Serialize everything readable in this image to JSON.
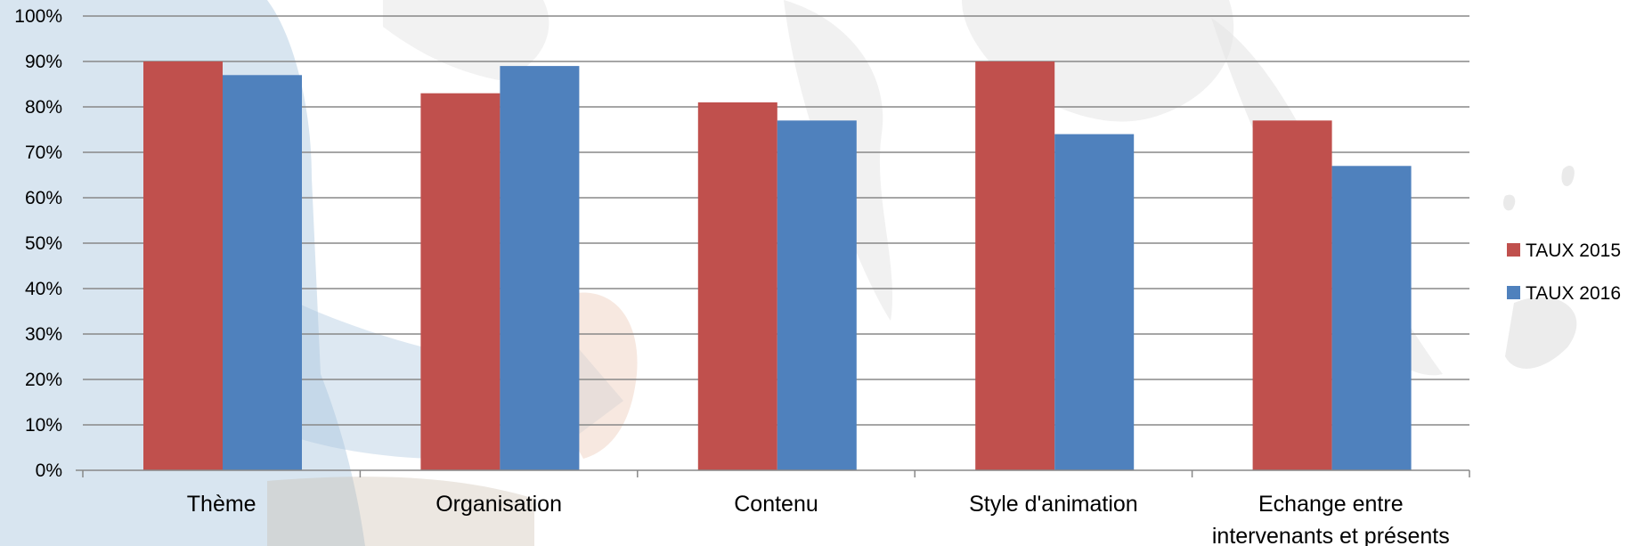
{
  "chart_data": {
    "type": "bar",
    "categories": [
      "Thème",
      "Organisation",
      "Contenu",
      "Style d'animation",
      "Echange entre intervenants et présents"
    ],
    "category_lines": [
      [
        "Thème"
      ],
      [
        "Organisation"
      ],
      [
        "Contenu"
      ],
      [
        "Style d'animation"
      ],
      [
        "Echange entre",
        "intervenants et présents"
      ]
    ],
    "series": [
      {
        "name": "TAUX 2015",
        "color": "#C0504D",
        "values": [
          0.9,
          0.83,
          0.81,
          0.9,
          0.77
        ]
      },
      {
        "name": "TAUX 2016",
        "color": "#4F81BD",
        "values": [
          0.87,
          0.89,
          0.77,
          0.74,
          0.67
        ]
      }
    ],
    "yticks": [
      "0%",
      "10%",
      "20%",
      "30%",
      "40%",
      "50%",
      "60%",
      "70%",
      "80%",
      "90%",
      "100%"
    ],
    "ylim": [
      0,
      1
    ],
    "grid": true,
    "legend_position": "right",
    "title": "",
    "xlabel": "",
    "ylabel": ""
  }
}
